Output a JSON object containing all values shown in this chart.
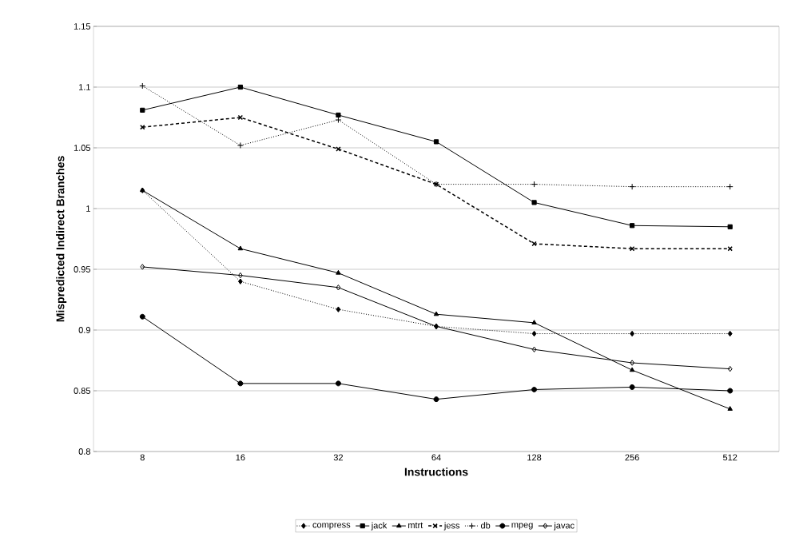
{
  "chart_data": {
    "type": "line",
    "xlabel": "Instructions",
    "ylabel": "Mispredicted Indirect Branches",
    "categories": [
      "8",
      "16",
      "32",
      "64",
      "128",
      "256",
      "512"
    ],
    "ylim": [
      0.8,
      1.15
    ],
    "yticks": [
      0.8,
      0.85,
      0.9,
      0.95,
      1,
      1.05,
      1.1,
      1.15
    ],
    "grid": "y",
    "legend": "bottom",
    "series": [
      {
        "name": "compress",
        "color": "#000000",
        "marker": "diamond",
        "line_style": "dotted",
        "values": [
          1.015,
          0.94,
          0.917,
          0.903,
          0.897,
          0.897,
          0.897
        ]
      },
      {
        "name": "jack",
        "color": "#000000",
        "marker": "square",
        "line_style": "solid",
        "values": [
          1.081,
          1.1,
          1.077,
          1.055,
          1.005,
          0.986,
          0.985
        ]
      },
      {
        "name": "mtrt",
        "color": "#000000",
        "marker": "triangle",
        "line_style": "solid",
        "values": [
          1.015,
          0.967,
          0.947,
          0.913,
          0.906,
          0.867,
          0.835
        ]
      },
      {
        "name": "jess",
        "color": "#000000",
        "marker": "cross",
        "line_style": "dashed",
        "values": [
          1.067,
          1.075,
          1.049,
          1.02,
          0.971,
          0.967,
          0.967
        ]
      },
      {
        "name": "db",
        "color": "#000000",
        "marker": "plus",
        "line_style": "dotted",
        "values": [
          1.101,
          1.052,
          1.073,
          1.02,
          1.02,
          1.018,
          1.018
        ]
      },
      {
        "name": "mpeg",
        "color": "#000000",
        "marker": "circle",
        "line_style": "solid",
        "values": [
          0.911,
          0.856,
          0.856,
          0.843,
          0.851,
          0.853,
          0.85
        ]
      },
      {
        "name": "javac",
        "color": "#000000",
        "marker": "diamond-open",
        "line_style": "solid",
        "values": [
          0.952,
          0.945,
          0.935,
          0.903,
          0.884,
          0.873,
          0.868
        ]
      }
    ]
  }
}
